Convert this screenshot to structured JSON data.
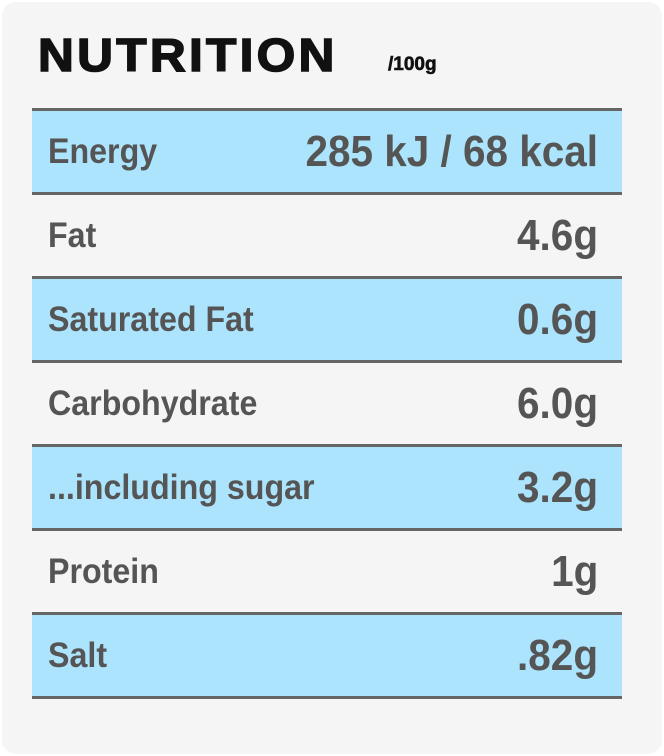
{
  "header": {
    "title": "NUTRITION",
    "unit": "/100g"
  },
  "table": {
    "rows": [
      [
        "Energy",
        "285 kJ / 68 kcal"
      ],
      [
        "Fat",
        "4.6g"
      ],
      [
        "Saturated Fat",
        "0.6g"
      ],
      [
        "Carbohydrate",
        "6.0g"
      ],
      [
        "...including sugar",
        "3.2g"
      ],
      [
        "Protein",
        "1g"
      ],
      [
        "Salt",
        ".82g"
      ]
    ]
  }
}
